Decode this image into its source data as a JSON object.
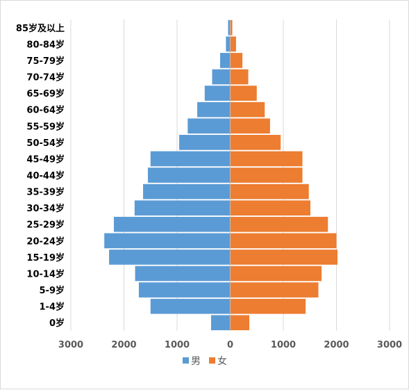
{
  "chart_data": {
    "type": "bar",
    "orientation": "horizontal-population-pyramid",
    "categories": [
      "0岁",
      "1-4岁",
      "5-9岁",
      "10-14岁",
      "15-19岁",
      "20-24岁",
      "25-29岁",
      "30-34岁",
      "35-39岁",
      "40-44岁",
      "45-49岁",
      "50-54岁",
      "55-59岁",
      "60-64岁",
      "65-69岁",
      "70-74岁",
      "75-79岁",
      "80-84岁",
      "85岁及以上"
    ],
    "series": [
      {
        "name": "男",
        "color": "#5b9bd5",
        "side": "left",
        "values": [
          360,
          1500,
          1720,
          1790,
          2280,
          2370,
          2190,
          1800,
          1640,
          1550,
          1500,
          960,
          800,
          620,
          480,
          340,
          190,
          80,
          40
        ]
      },
      {
        "name": "女",
        "color": "#ed7d31",
        "side": "right",
        "values": [
          360,
          1420,
          1660,
          1720,
          2020,
          2000,
          1840,
          1510,
          1480,
          1360,
          1360,
          950,
          750,
          650,
          500,
          340,
          230,
          110,
          40
        ]
      }
    ],
    "xlim": [
      -3000,
      3000
    ],
    "x_ticks": [
      -3000,
      -2000,
      -1000,
      0,
      1000,
      2000,
      3000
    ],
    "x_tick_labels": [
      "3000",
      "2000",
      "1000",
      "0",
      "1000",
      "2000",
      "3000"
    ],
    "grid": true,
    "legend_position": "bottom"
  }
}
